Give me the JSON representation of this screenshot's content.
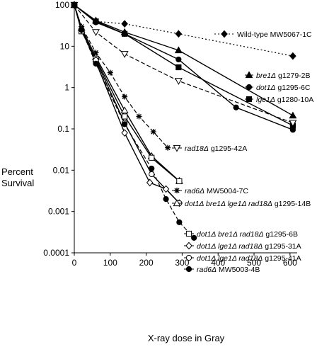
{
  "chart_data": {
    "type": "line",
    "title": "",
    "xlabel": "X-ray dose in Gray",
    "ylabel_lines": [
      "Percent",
      "Survival"
    ],
    "xlim": [
      0,
      620
    ],
    "ylim": [
      0.0001,
      100
    ],
    "yscale": "log",
    "grid": false,
    "x_ticks": [
      0,
      100,
      200,
      300,
      400,
      500,
      600
    ],
    "x_tick_labels": [
      "0",
      "100",
      "200",
      "300",
      "400",
      "500",
      "600"
    ],
    "y_ticks": [
      100,
      10,
      1,
      0.1,
      0.01,
      0.001,
      0.0001
    ],
    "y_tick_labels": [
      "100",
      "10",
      "1",
      "0.1",
      "0.01",
      "0.001",
      "0.0001"
    ],
    "series": [
      {
        "id": "wt",
        "legend": [
          {
            "text": "Wild-type MW5067-1C",
            "italic": false
          }
        ],
        "marker": "diamond-filled",
        "dash": "dotted",
        "x": [
          0,
          60,
          140,
          290,
          608
        ],
        "y": [
          100,
          40,
          35,
          20,
          5.8
        ]
      },
      {
        "id": "bre1",
        "legend": [
          {
            "text": "bre1Δ",
            "italic": true
          },
          {
            "text": " g1279-2B",
            "italic": false
          }
        ],
        "marker": "triangle-filled",
        "dash": "solid",
        "x": [
          0,
          60,
          140,
          290,
          608
        ],
        "y": [
          100,
          42,
          22,
          8,
          0.21
        ]
      },
      {
        "id": "dot1",
        "legend": [
          {
            "text": "dot1Δ",
            "italic": true
          },
          {
            "text": " g1295-6C",
            "italic": false
          }
        ],
        "marker": "circle-filled",
        "dash": "solid",
        "x": [
          0,
          60,
          140,
          290,
          450,
          608
        ],
        "y": [
          100,
          38,
          20,
          4.8,
          0.33,
          0.095
        ]
      },
      {
        "id": "lge1",
        "legend": [
          {
            "text": "lge1Δ",
            "italic": true
          },
          {
            "text": " g1280-10A",
            "italic": false
          }
        ],
        "marker": "square-filled",
        "dash": "solid",
        "x": [
          0,
          60,
          140,
          290,
          608
        ],
        "y": [
          100,
          40,
          20,
          3.1,
          0.12
        ]
      },
      {
        "id": "rad18",
        "legend": [
          {
            "text": "rad18Δ",
            "italic": true
          },
          {
            "text": " g1295-42A",
            "italic": false
          }
        ],
        "marker": "triangle-down-open",
        "dash": "dashed",
        "x": [
          0,
          60,
          140,
          290,
          608
        ],
        "y": [
          100,
          22,
          6.5,
          1.45,
          0.14
        ]
      },
      {
        "id": "rad6a",
        "legend": [
          {
            "text": "rad6Δ",
            "italic": true
          },
          {
            "text": " MW5004-7C",
            "italic": false
          }
        ],
        "marker": "asterisk",
        "dash": "dashed",
        "x": [
          0,
          20,
          60,
          100,
          140,
          180,
          220,
          260
        ],
        "y": [
          100,
          30,
          7,
          2.3,
          0.6,
          0.2,
          0.085,
          0.035
        ]
      },
      {
        "id": "quad",
        "legend": [
          {
            "text": "dot1Δ bre1Δ lge1Δ rad18Δ",
            "italic": true
          },
          {
            "text": " g1295-14B",
            "italic": false
          }
        ],
        "marker": "triangle-open",
        "dash": "solid",
        "x": [
          0,
          20,
          60,
          140,
          215,
          292
        ],
        "y": [
          100,
          28,
          5.5,
          0.28,
          0.022,
          0.0055
        ]
      },
      {
        "id": "triple6b",
        "legend": [
          {
            "text": "dot1Δ bre1Δ rad18Δ",
            "italic": true
          },
          {
            "text": " g1295-6B",
            "italic": false
          }
        ],
        "marker": "square-open",
        "dash": "solid",
        "x": [
          0,
          20,
          60,
          140,
          215,
          292
        ],
        "y": [
          100,
          23,
          5,
          0.2,
          0.02,
          0.0054
        ]
      },
      {
        "id": "triple31a",
        "legend": [
          {
            "text": "dot1Δ lge1Δ rad18Δ",
            "italic": true
          },
          {
            "text": " g1295-31A",
            "italic": false
          }
        ],
        "marker": "diamond-open",
        "dash": "solid",
        "x": [
          0,
          20,
          60,
          140,
          210,
          255,
          292
        ],
        "y": [
          100,
          25,
          4.2,
          0.08,
          0.005,
          0.0035,
          0.0016
        ]
      },
      {
        "id": "triple41a",
        "legend": [
          {
            "text": "dot1Δ lge1Δ rad18Δ",
            "italic": true
          },
          {
            "text": " g1295-41A",
            "italic": false
          }
        ],
        "marker": "circle-open",
        "dash": "solid",
        "x": [
          0,
          20,
          60,
          140,
          215,
          292
        ],
        "y": [
          100,
          26,
          4.6,
          0.14,
          0.008,
          0.0016
        ]
      },
      {
        "id": "rad6b",
        "legend": [
          {
            "text": "rad6Δ",
            "italic": true
          },
          {
            "text": " MW5003-4B",
            "italic": false
          }
        ],
        "marker": "circle-filled",
        "dash": "dashed",
        "x": [
          0,
          20,
          60,
          140,
          215,
          255,
          292,
          333
        ],
        "y": [
          100,
          25,
          3.8,
          0.13,
          0.011,
          0.002,
          0.00055,
          0.00023
        ]
      }
    ]
  }
}
